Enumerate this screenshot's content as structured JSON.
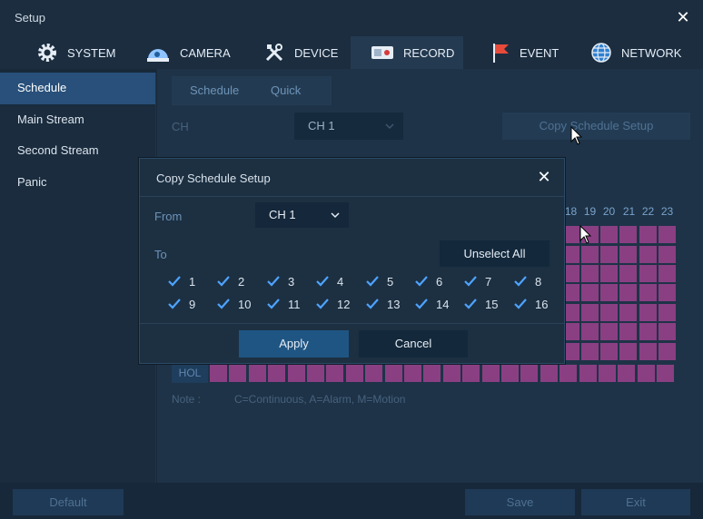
{
  "window": {
    "title": "Setup",
    "close_icon": "close-icon"
  },
  "tabs": [
    {
      "label": "SYSTEM",
      "icon": "gear-icon"
    },
    {
      "label": "CAMERA",
      "icon": "camera-icon"
    },
    {
      "label": "DEVICE",
      "icon": "tools-icon"
    },
    {
      "label": "RECORD",
      "icon": "record-icon",
      "active": true
    },
    {
      "label": "EVENT",
      "icon": "flag-icon"
    },
    {
      "label": "NETWORK",
      "icon": "globe-icon"
    }
  ],
  "sidebar": {
    "items": [
      {
        "label": "Schedule",
        "active": true
      },
      {
        "label": "Main Stream"
      },
      {
        "label": "Second Stream"
      },
      {
        "label": "Panic"
      }
    ]
  },
  "content": {
    "subtabs": [
      "Schedule",
      "Quick"
    ],
    "ch_label": "CH",
    "ch_value": "CH 1",
    "copy_button": "Copy Schedule Setup",
    "hours_visible": [
      "18",
      "19",
      "20",
      "21",
      "22",
      "23"
    ],
    "hol_label": "HOL",
    "note_label": "Note :",
    "note_text": "C=Continuous, A=Alarm, M=Motion",
    "cell_color": "#8a3f83"
  },
  "modal": {
    "title": "Copy Schedule Setup",
    "from_label": "From",
    "from_value": "CH 1",
    "to_label": "To",
    "unselect_all": "Unselect All",
    "channels": [
      {
        "label": "1",
        "checked": true
      },
      {
        "label": "2",
        "checked": true
      },
      {
        "label": "3",
        "checked": true
      },
      {
        "label": "4",
        "checked": true
      },
      {
        "label": "5",
        "checked": true
      },
      {
        "label": "6",
        "checked": true
      },
      {
        "label": "7",
        "checked": true
      },
      {
        "label": "8",
        "checked": true
      },
      {
        "label": "9",
        "checked": true
      },
      {
        "label": "10",
        "checked": true
      },
      {
        "label": "11",
        "checked": true
      },
      {
        "label": "12",
        "checked": true
      },
      {
        "label": "13",
        "checked": true
      },
      {
        "label": "14",
        "checked": true
      },
      {
        "label": "15",
        "checked": true
      },
      {
        "label": "16",
        "checked": true
      }
    ],
    "apply": "Apply",
    "cancel": "Cancel"
  },
  "footer": {
    "default": "Default",
    "save": "Save",
    "exit": "Exit"
  }
}
